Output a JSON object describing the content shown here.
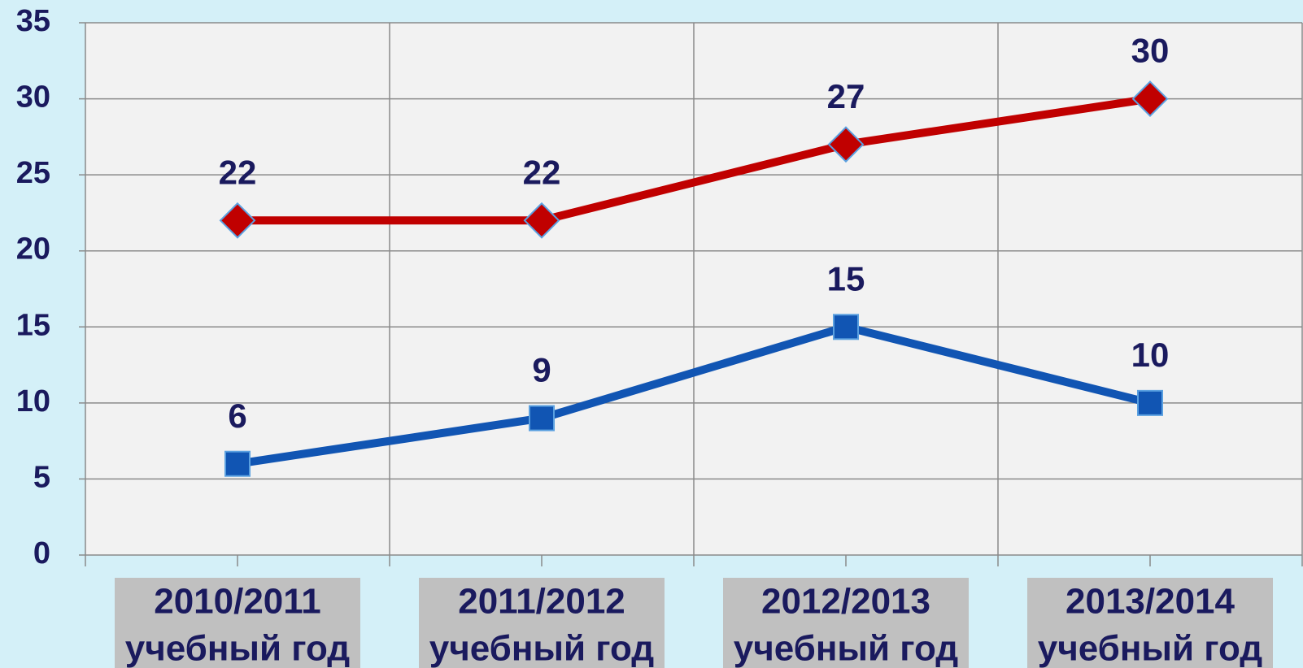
{
  "chart_data": {
    "type": "line",
    "categories": [
      [
        "2010/2011",
        "учебный год"
      ],
      [
        "2011/2012",
        "учебный год"
      ],
      [
        "2012/2013",
        "учебный год"
      ],
      [
        "2013/2014",
        "учебный год"
      ]
    ],
    "series": [
      {
        "color": "#c00000",
        "marker": "diamond",
        "values": [
          22,
          22,
          27,
          30
        ]
      },
      {
        "color": "#1155b3",
        "marker": "square",
        "values": [
          6,
          9,
          15,
          10
        ]
      }
    ],
    "ylim": [
      0,
      35
    ],
    "yticks": [
      0,
      5,
      10,
      15,
      20,
      25,
      30,
      35
    ],
    "grid": true
  }
}
